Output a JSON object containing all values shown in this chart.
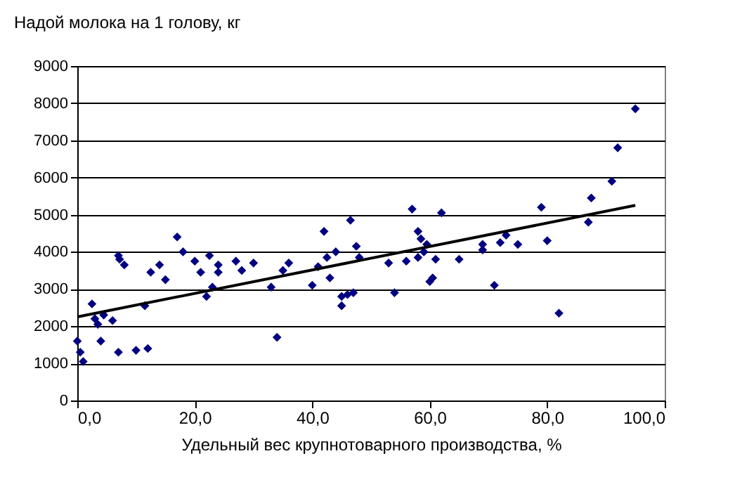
{
  "chart_data": {
    "type": "scatter",
    "title": "Надой молока на 1 голову, кг",
    "xlabel": "Удельный вес крупнотоварного производства, %",
    "xlim": [
      0,
      100
    ],
    "ylim": [
      0,
      9000
    ],
    "xticks": [
      {
        "value": 0,
        "label": "0,0"
      },
      {
        "value": 20,
        "label": "20,0"
      },
      {
        "value": 40,
        "label": "40,0"
      },
      {
        "value": 60,
        "label": "60,0"
      },
      {
        "value": 80,
        "label": "80,0"
      },
      {
        "value": 100,
        "label": "100,0"
      }
    ],
    "yticks": [
      0,
      1000,
      2000,
      3000,
      4000,
      5000,
      6000,
      7000,
      8000,
      9000
    ],
    "grid": "y",
    "marker": "diamond",
    "series": [
      {
        "color": "#000080",
        "x": [
          0,
          0.5,
          1,
          2.5,
          3,
          3.5,
          4,
          4.5,
          6,
          7,
          7,
          7.2,
          8,
          10,
          12,
          11.5,
          12.5,
          14,
          15,
          17,
          18,
          20,
          21,
          22,
          22.5,
          23,
          24,
          24,
          27,
          28,
          30,
          33,
          34,
          35,
          36,
          40,
          41,
          42,
          42.5,
          43,
          44,
          45,
          45,
          46,
          46.5,
          47,
          47.5,
          48,
          53,
          54,
          56,
          57,
          58,
          58,
          58.5,
          59,
          59.5,
          60,
          60.5,
          61,
          62,
          65,
          69,
          69,
          71,
          72,
          73,
          75,
          79,
          80,
          82,
          87,
          87.5,
          91,
          92,
          95
        ],
        "values": [
          1600,
          1300,
          1050,
          2600,
          2200,
          2050,
          1600,
          2300,
          2150,
          1300,
          3900,
          3800,
          3650,
          1350,
          1400,
          2550,
          3450,
          3650,
          3250,
          4400,
          4000,
          3750,
          3450,
          2800,
          3900,
          3050,
          3650,
          3450,
          3750,
          3500,
          3700,
          3050,
          1700,
          3500,
          3700,
          3100,
          3600,
          4550,
          3850,
          3300,
          4000,
          2800,
          2550,
          2850,
          4850,
          2900,
          4150,
          3850,
          3700,
          2900,
          3750,
          5150,
          3850,
          4550,
          4350,
          4000,
          4200,
          3200,
          3300,
          3800,
          5050,
          3800,
          4200,
          4050,
          3100,
          4250,
          4450,
          4200,
          5200,
          4300,
          2350,
          4800,
          5450,
          5900,
          6800,
          7850
        ]
      },
      {
        "type": "line",
        "color": "#000000",
        "marker": "none",
        "x": [
          0,
          95
        ],
        "values": [
          2250,
          5250
        ]
      }
    ]
  }
}
